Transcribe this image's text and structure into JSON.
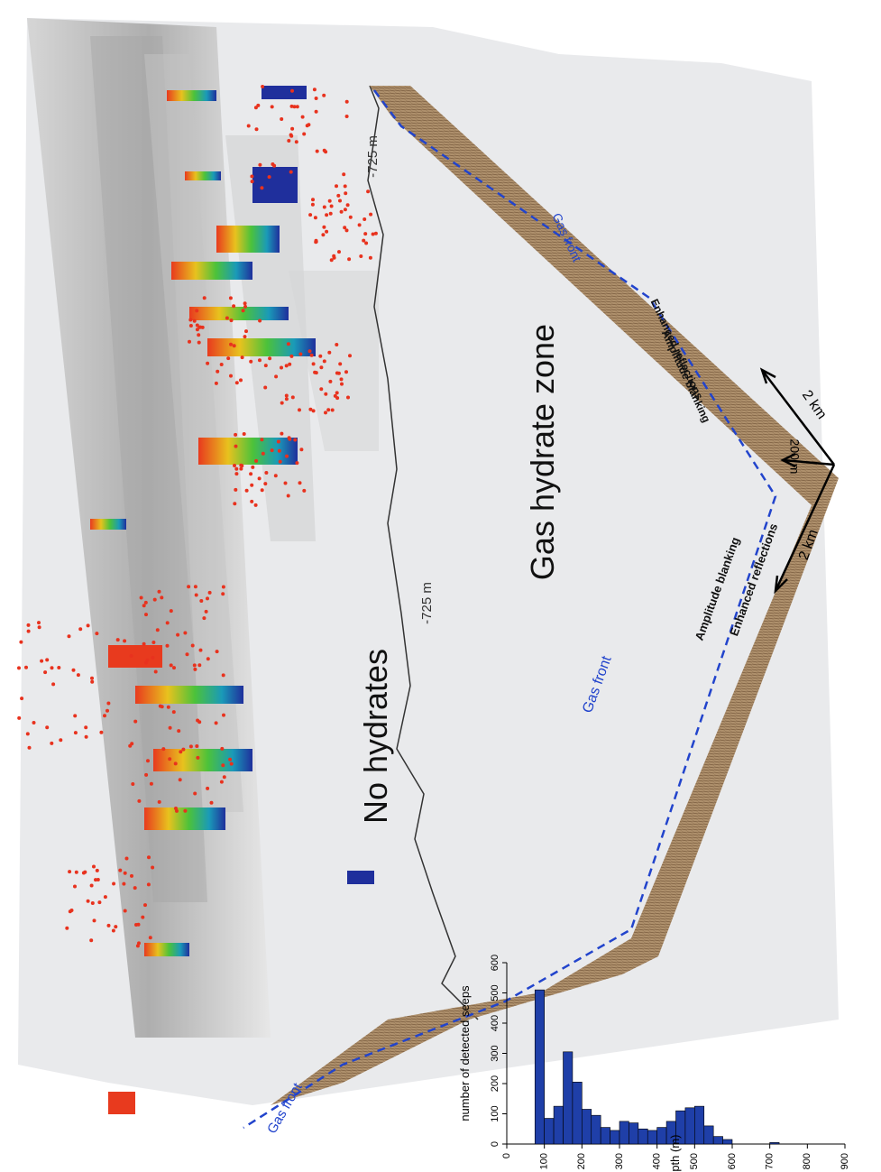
{
  "labels": {
    "no_hydrates": "No hydrates",
    "gas_hydrate_zone": "Gas hydrate  zone",
    "contour_left": "-725 m",
    "contour_right": "-725 m",
    "gas_front_upper_left": "Gas front",
    "gas_front_mid": "Gas front",
    "gas_front_right": "Gas front",
    "amplitude_blanking_left": "Amplitude blanking",
    "enhanced_reflections_left": "Enhanced reflections",
    "amplitude_blanking_right": "Amplitude blanking",
    "enhanced_reflections_right": "Enhanced reflections",
    "scale_2km_a": "2 km",
    "scale_2km_b": "2 km",
    "scale_200m": "200 m"
  },
  "colors": {
    "seep_dot": "#e8321e",
    "gas_front_line": "#2244cc",
    "bar_fill": "#1f3fa8",
    "seismic_brown": "#9c7a52"
  },
  "chart_data": {
    "type": "bar",
    "xlabel": "water depth (m)",
    "ylabel": "number of detected seeps",
    "x_ticks": [
      0,
      100,
      200,
      300,
      400,
      500,
      600,
      700,
      800,
      900
    ],
    "y_ticks": [
      0,
      100,
      200,
      300,
      400,
      500,
      600
    ],
    "xlim": [
      0,
      900
    ],
    "ylim": [
      0,
      600
    ],
    "bin_width": 25,
    "bins_start": [
      75,
      100,
      125,
      150,
      175,
      200,
      225,
      250,
      275,
      300,
      325,
      350,
      375,
      400,
      425,
      450,
      475,
      500,
      525,
      550,
      575,
      600,
      625,
      650,
      675,
      700,
      725,
      750,
      775,
      800,
      825
    ],
    "values": [
      510,
      85,
      125,
      305,
      205,
      115,
      95,
      55,
      45,
      75,
      70,
      50,
      45,
      55,
      75,
      110,
      120,
      125,
      60,
      25,
      15,
      0,
      0,
      0,
      0,
      5,
      0,
      0,
      0,
      0,
      0
    ]
  }
}
